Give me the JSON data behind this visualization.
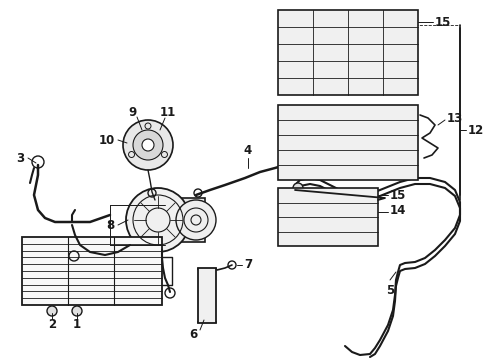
{
  "bg_color": "#ffffff",
  "line_color": "#1a1a1a",
  "label_color": "#111111",
  "figsize": [
    4.9,
    3.6
  ],
  "dpi": 100,
  "lw_main": 1.3,
  "lw_thin": 0.7,
  "lw_double": 1.0,
  "font_size": 8.5,
  "font_size_small": 7.5
}
